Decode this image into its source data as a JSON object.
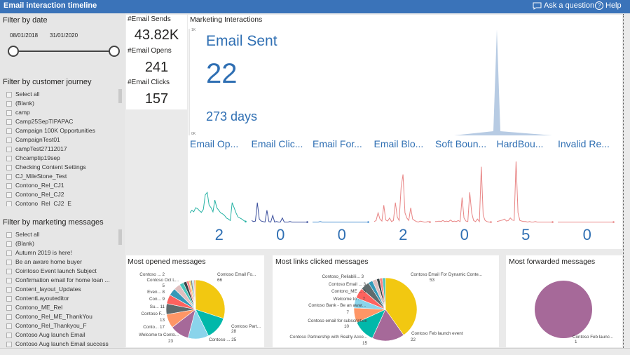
{
  "header": {
    "title": "Email interaction timeline",
    "ask_label": "Ask a question",
    "help_label": "Help"
  },
  "date_filter": {
    "title": "Filter by date",
    "start": "08/01/2018",
    "end": "31/01/2020"
  },
  "journey_filter": {
    "title": "Filter by customer journey",
    "items": [
      "Select all",
      "(Blank)",
      "camp",
      "Camp25SepTIPAPAC",
      "Campaign 100K Opportunities",
      "CampaignTest01",
      "campTest27112017",
      "Chcamptip19sep",
      "Checking Content Settings",
      "CJ_MileStone_Test",
      "Contono_Rel_CJ1",
      "Contono_Rel_CJ2",
      "Contono_Rel_CJ2_E"
    ]
  },
  "messages_filter": {
    "title": "Filter by marketing messages",
    "items": [
      "Select all",
      "(Blank)",
      "Autumn 2019 is here!",
      "Be an aware home buyer",
      "Cointoso Event launch Subject",
      "Confirmation email for home loan ...",
      "Content_layout_Updates",
      "ContentLayouteditor",
      "Contono_ME_Rel",
      "Contono_Rel_ME_ThankYou",
      "Contono_Rel_Thankyou_F",
      "Contoso Aug launch Email",
      "Contoso Aug launch Email success"
    ]
  },
  "kpis": [
    {
      "label": "#Email Sends",
      "value": "43.82K"
    },
    {
      "label": "#Email Opens",
      "value": "241"
    },
    {
      "label": "#Email Clicks",
      "value": "157"
    }
  ],
  "interactions": {
    "title": "Marketing Interactions",
    "metric_label": "Email Sent",
    "metric_value": "22",
    "days_label": "273 days",
    "axis_top": "1K",
    "axis_bottom": "0K",
    "spike_color": "#b7cbe3"
  },
  "small_multiples": [
    {
      "title": "Email Op...",
      "value": "2",
      "color": "#27b2a4",
      "pattern": [
        20,
        25,
        22,
        30,
        28,
        24,
        21,
        27,
        55,
        60,
        35,
        30,
        22,
        45,
        30,
        25,
        20,
        18,
        15,
        10,
        8,
        5,
        40,
        30,
        20,
        12,
        10,
        8,
        5,
        3
      ]
    },
    {
      "title": "Email Clic...",
      "value": "0",
      "color": "#3a4e9c",
      "pattern": [
        5,
        3,
        4,
        40,
        8,
        4,
        3,
        2,
        25,
        3,
        2,
        15,
        2,
        3,
        2,
        2,
        10,
        2,
        2,
        2,
        3,
        2,
        2,
        2,
        2,
        2,
        2,
        2,
        2,
        2
      ]
    },
    {
      "title": "Email For...",
      "value": "0",
      "color": "#4a8fd1",
      "pattern": [
        2,
        2,
        2,
        2,
        3,
        2,
        2,
        2,
        2,
        2,
        2,
        2,
        2,
        2,
        2,
        2,
        2,
        2,
        2,
        2,
        2,
        2,
        2,
        2,
        2,
        2,
        2,
        2,
        2,
        2
      ]
    },
    {
      "title": "Email Blo...",
      "value": "2",
      "color": "#e88585",
      "pattern": [
        3,
        5,
        20,
        8,
        4,
        35,
        6,
        4,
        10,
        3,
        5,
        40,
        12,
        5,
        70,
        95,
        20,
        10,
        5,
        30,
        8,
        5,
        3,
        2,
        4,
        3,
        2,
        2,
        3,
        2
      ]
    },
    {
      "title": "Soft Boun...",
      "value": "0",
      "color": "#e88585",
      "pattern": [
        3,
        3,
        4,
        3,
        5,
        3,
        4,
        3,
        6,
        3,
        4,
        3,
        5,
        3,
        50,
        10,
        4,
        3,
        60,
        20,
        5,
        3,
        8,
        3,
        110,
        15,
        5,
        3,
        2,
        2
      ]
    },
    {
      "title": "HardBou...",
      "value": "5",
      "color": "#e88585",
      "pattern": [
        3,
        4,
        5,
        6,
        8,
        4,
        5,
        10,
        6,
        5,
        120,
        20,
        5,
        4,
        3,
        3,
        2,
        3,
        2,
        2,
        3,
        2,
        2,
        2,
        2,
        2,
        2,
        2,
        2,
        2
      ]
    },
    {
      "title": "Invalid Re...",
      "value": "0",
      "color": "#e88585",
      "pattern": [
        2,
        2,
        2,
        2,
        2,
        2,
        2,
        2,
        2,
        2,
        2,
        2,
        2,
        2,
        2,
        2,
        2,
        2,
        2,
        2,
        2,
        2,
        2,
        2,
        2,
        2,
        2,
        2,
        2,
        2
      ]
    }
  ],
  "pie_opened": {
    "title": "Most opened messages",
    "labels_left": [
      "Contoso ... 2",
      "Contoso Oct L...",
      "5",
      "Even... 8",
      "Con... 9",
      "Su... 11",
      "Contoso F...",
      "13",
      "Conto... 17",
      "Welcome to Conto...",
      "23"
    ],
    "labels_right": [
      "Contoso Email Fo...",
      "66",
      "Contoso Part...",
      "28",
      "Contoso ... 25"
    ],
    "slices": [
      {
        "value": 66,
        "color": "#f2c811"
      },
      {
        "value": 28,
        "color": "#01b8aa"
      },
      {
        "value": 25,
        "color": "#8ad4eb"
      },
      {
        "value": 23,
        "color": "#a66999"
      },
      {
        "value": 17,
        "color": "#fe9666"
      },
      {
        "value": 13,
        "color": "#5f6b6d"
      },
      {
        "value": 11,
        "color": "#fd625e"
      },
      {
        "value": 9,
        "color": "#3599b8"
      },
      {
        "value": 8,
        "color": "#dfbfbf"
      },
      {
        "value": 5,
        "color": "#4ac5bb"
      },
      {
        "value": 4,
        "color": "#374649"
      },
      {
        "value": 3,
        "color": "#fb8281"
      },
      {
        "value": 2,
        "color": "#f4d25a"
      },
      {
        "value": 2,
        "color": "#7f898a"
      },
      {
        "value": 2,
        "color": "#a4ddee"
      },
      {
        "value": 2,
        "color": "#fdab89"
      }
    ]
  },
  "pie_clicked": {
    "title": "Most links clicked messages",
    "labels_left": [
      "Contoso_Reliabili... 3",
      "Contoso Email ... 3",
      "Contono_ME ... 6",
      "Welcome to ... 7",
      "Contoso Bank - Be an awar...",
      "7",
      "Contoso email for subscription",
      "10",
      "Contoso Partnership with Realty Acco...",
      "15"
    ],
    "labels_right": [
      "Contoso Email For Dynamic Conte...",
      "53",
      "Contoso Feb launch event",
      "22"
    ],
    "slices": [
      {
        "value": 53,
        "color": "#f2c811"
      },
      {
        "value": 22,
        "color": "#a66999"
      },
      {
        "value": 15,
        "color": "#01b8aa"
      },
      {
        "value": 10,
        "color": "#fe9666"
      },
      {
        "value": 7,
        "color": "#8ad4eb"
      },
      {
        "value": 7,
        "color": "#fd625e"
      },
      {
        "value": 6,
        "color": "#5f6b6d"
      },
      {
        "value": 3,
        "color": "#3599b8"
      },
      {
        "value": 3,
        "color": "#dfbfbf"
      },
      {
        "value": 2,
        "color": "#374649"
      },
      {
        "value": 2,
        "color": "#fb8281"
      },
      {
        "value": 2,
        "color": "#4ac5bb"
      }
    ]
  },
  "pie_forwarded": {
    "title": "Most forwarded messages",
    "labels_right": [
      "Contoso Feb launc...",
      "1"
    ],
    "slices": [
      {
        "value": 1,
        "color": "#a66999"
      }
    ]
  }
}
